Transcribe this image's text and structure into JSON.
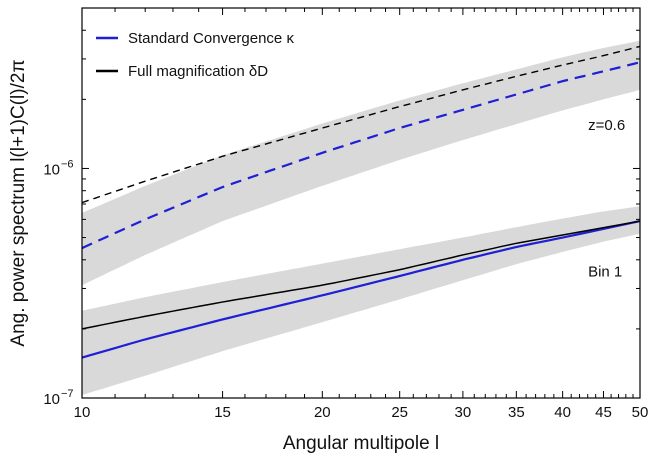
{
  "chart_data": {
    "type": "line",
    "xlabel": "Angular multipole l",
    "ylabel": "Ang. power spectrum l(l+1)C(l)/2π",
    "xscale": "log",
    "yscale": "log",
    "xlim": [
      10,
      50
    ],
    "ylim": [
      1e-07,
      5e-06
    ],
    "x_tick_labels": [
      "10",
      "15",
      "20",
      "25",
      "30",
      "35",
      "40",
      "45",
      "50"
    ],
    "x_tick_values": [
      10,
      15,
      20,
      25,
      30,
      35,
      40,
      45,
      50
    ],
    "y_tick_labels": [
      {
        "value": 1e-07,
        "base": "10",
        "exp": "−7"
      },
      {
        "value": 1e-06,
        "base": "10",
        "exp": "−6"
      }
    ],
    "legend": {
      "placement": "top-left",
      "entries": [
        {
          "label": "Standard Convergence κ",
          "color": "#1f1fd6"
        },
        {
          "label": "Full magnification δD",
          "color": "#000000"
        }
      ]
    },
    "annotations": [
      {
        "text": "z=0.6",
        "x": 46,
        "y": 1.55e-06
      },
      {
        "text": "Bin 1",
        "x": 46,
        "y": 3.55e-07
      }
    ],
    "series": [
      {
        "legend_entry": 0,
        "group": "z=0.6",
        "style": "dashed",
        "color": "#1f1fd6",
        "x": [
          10,
          12,
          15,
          20,
          25,
          30,
          35,
          40,
          45,
          50
        ],
        "y": [
          4.5e-07,
          6e-07,
          8.3e-07,
          1.17e-06,
          1.5e-06,
          1.8e-06,
          2.1e-06,
          2.4e-06,
          2.65e-06,
          2.9e-06
        ],
        "band_lower": [
          3.1e-07,
          4.2e-07,
          5.9e-07,
          8.4e-07,
          1.09e-06,
          1.33e-06,
          1.56e-06,
          1.79e-06,
          2e-06,
          2.2e-06
        ],
        "band_upper": [
          6.4e-07,
          8.4e-07,
          1.14e-06,
          1.57e-06,
          1.98e-06,
          2.35e-06,
          2.7e-06,
          3.05e-06,
          3.35e-06,
          3.6e-06
        ]
      },
      {
        "legend_entry": 1,
        "group": "z=0.6",
        "style": "dashed",
        "color": "#000000",
        "x": [
          10,
          12,
          15,
          20,
          25,
          30,
          35,
          40,
          45,
          50
        ],
        "y": [
          7.1e-07,
          8.8e-07,
          1.13e-06,
          1.5e-06,
          1.86e-06,
          2.2e-06,
          2.52e-06,
          2.82e-06,
          3.1e-06,
          3.4e-06
        ]
      },
      {
        "legend_entry": 0,
        "group": "Bin 1",
        "style": "solid",
        "color": "#1f1fd6",
        "x": [
          10,
          12,
          15,
          20,
          25,
          30,
          35,
          40,
          45,
          50
        ],
        "y": [
          1.5e-07,
          1.8e-07,
          2.2e-07,
          2.8e-07,
          3.4e-07,
          4e-07,
          4.55e-07,
          5e-07,
          5.45e-07,
          5.9e-07
        ],
        "band_lower": [
          1.03e-07,
          1.25e-07,
          1.6e-07,
          2.14e-07,
          2.69e-07,
          3.26e-07,
          3.83e-07,
          4.33e-07,
          4.8e-07,
          5.2e-07
        ],
        "band_upper": [
          2.4e-07,
          2.75e-07,
          3.2e-07,
          3.85e-07,
          4.45e-07,
          5e-07,
          5.55e-07,
          6.05e-07,
          6.5e-07,
          6.85e-07
        ]
      },
      {
        "legend_entry": 1,
        "group": "Bin 1",
        "style": "solid",
        "color": "#000000",
        "x": [
          10,
          12,
          15,
          20,
          25,
          30,
          35,
          40,
          45,
          50
        ],
        "y": [
          2e-07,
          2.27e-07,
          2.62e-07,
          3.1e-07,
          3.62e-07,
          4.2e-07,
          4.72e-07,
          5.13e-07,
          5.52e-07,
          5.9e-07
        ]
      }
    ],
    "band_color": "#d9d9d9"
  }
}
